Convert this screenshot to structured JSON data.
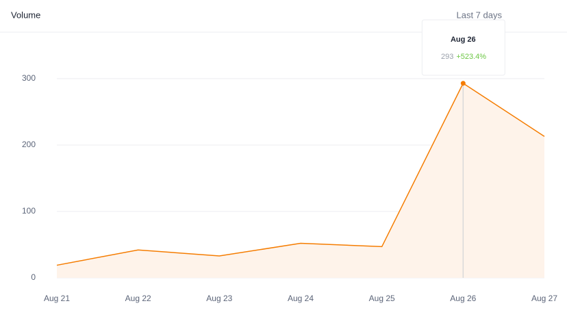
{
  "chart_data": {
    "type": "area",
    "title": "Volume",
    "subtitle": "Last 7 days",
    "categories": [
      "Aug 21",
      "Aug 22",
      "Aug 23",
      "Aug 24",
      "Aug 25",
      "Aug 26",
      "Aug 27"
    ],
    "values": [
      19,
      42,
      33,
      52,
      47,
      293,
      213
    ],
    "color": "#f57c00",
    "fill": "#fef3ea",
    "ylim": [
      0,
      370
    ],
    "yticks": [
      0,
      100,
      200,
      300
    ],
    "grid": true,
    "tooltip": {
      "category": "Aug 26",
      "value": 293,
      "change": "+523.4%"
    }
  }
}
